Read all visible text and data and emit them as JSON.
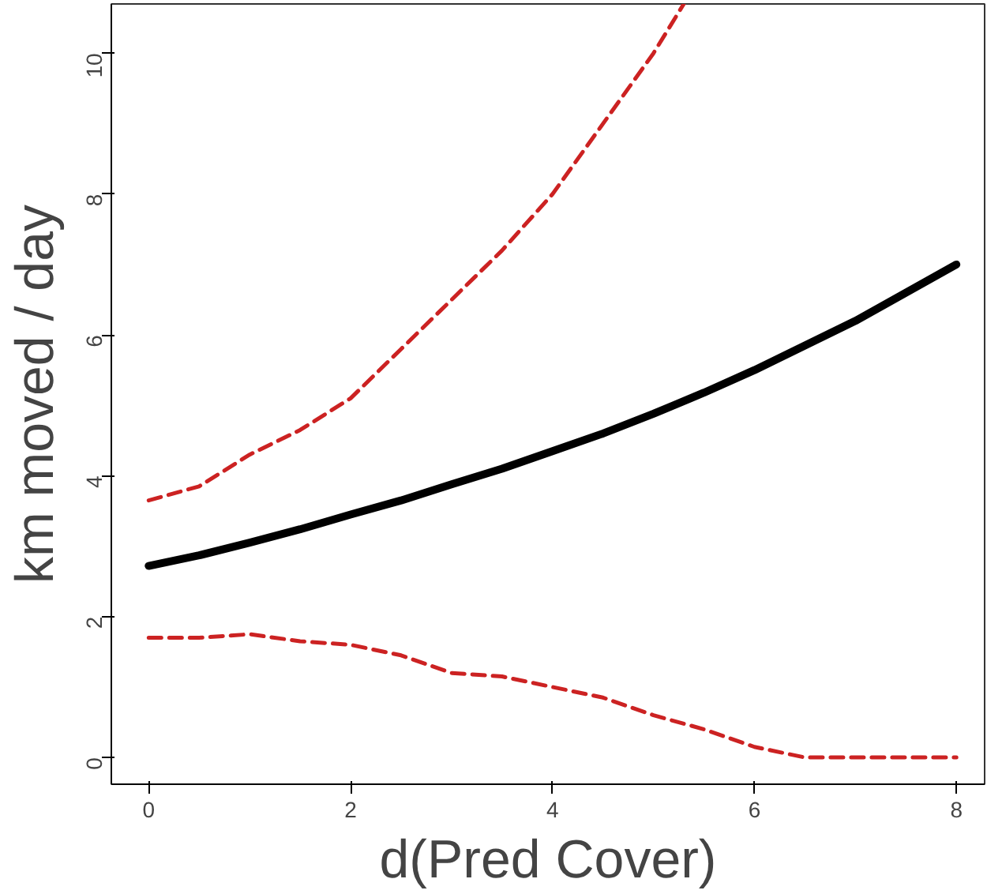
{
  "chart_data": {
    "type": "line",
    "xlabel": "d(Pred Cover)",
    "ylabel": "km moved / day",
    "x": [
      0,
      0.5,
      1,
      1.5,
      2,
      2.5,
      3,
      3.5,
      4,
      4.5,
      5,
      5.5,
      6,
      6.5,
      7,
      7.5,
      8
    ],
    "series": [
      {
        "color": "#000000",
        "line_style": "solid",
        "values": [
          2.72,
          2.87,
          3.05,
          3.24,
          3.45,
          3.65,
          3.88,
          4.1,
          4.35,
          4.6,
          4.88,
          5.18,
          5.5,
          5.85,
          6.2,
          6.6,
          7.0
        ]
      },
      {
        "color": "#cc2222",
        "line_style": "dashed",
        "x": [
          0,
          0.5,
          1,
          1.5,
          2,
          2.5,
          3,
          3.5,
          4,
          4.5,
          5,
          5.3
        ],
        "values": [
          3.65,
          3.85,
          4.3,
          4.65,
          5.1,
          5.8,
          6.5,
          7.2,
          8.0,
          9.0,
          10.0,
          10.7
        ]
      },
      {
        "color": "#cc2222",
        "line_style": "dashed",
        "values": [
          1.7,
          1.7,
          1.75,
          1.65,
          1.6,
          1.45,
          1.2,
          1.15,
          1.0,
          0.85,
          0.6,
          0.4,
          0.15,
          0.0,
          0.0,
          0.0,
          0.0
        ]
      }
    ],
    "xlim": [
      -0.37,
      8.28
    ],
    "ylim": [
      -0.38,
      10.7
    ],
    "xticks": [
      0,
      2,
      4,
      6,
      8
    ],
    "yticks": [
      0,
      2,
      4,
      6,
      8,
      10
    ],
    "grid": false
  }
}
